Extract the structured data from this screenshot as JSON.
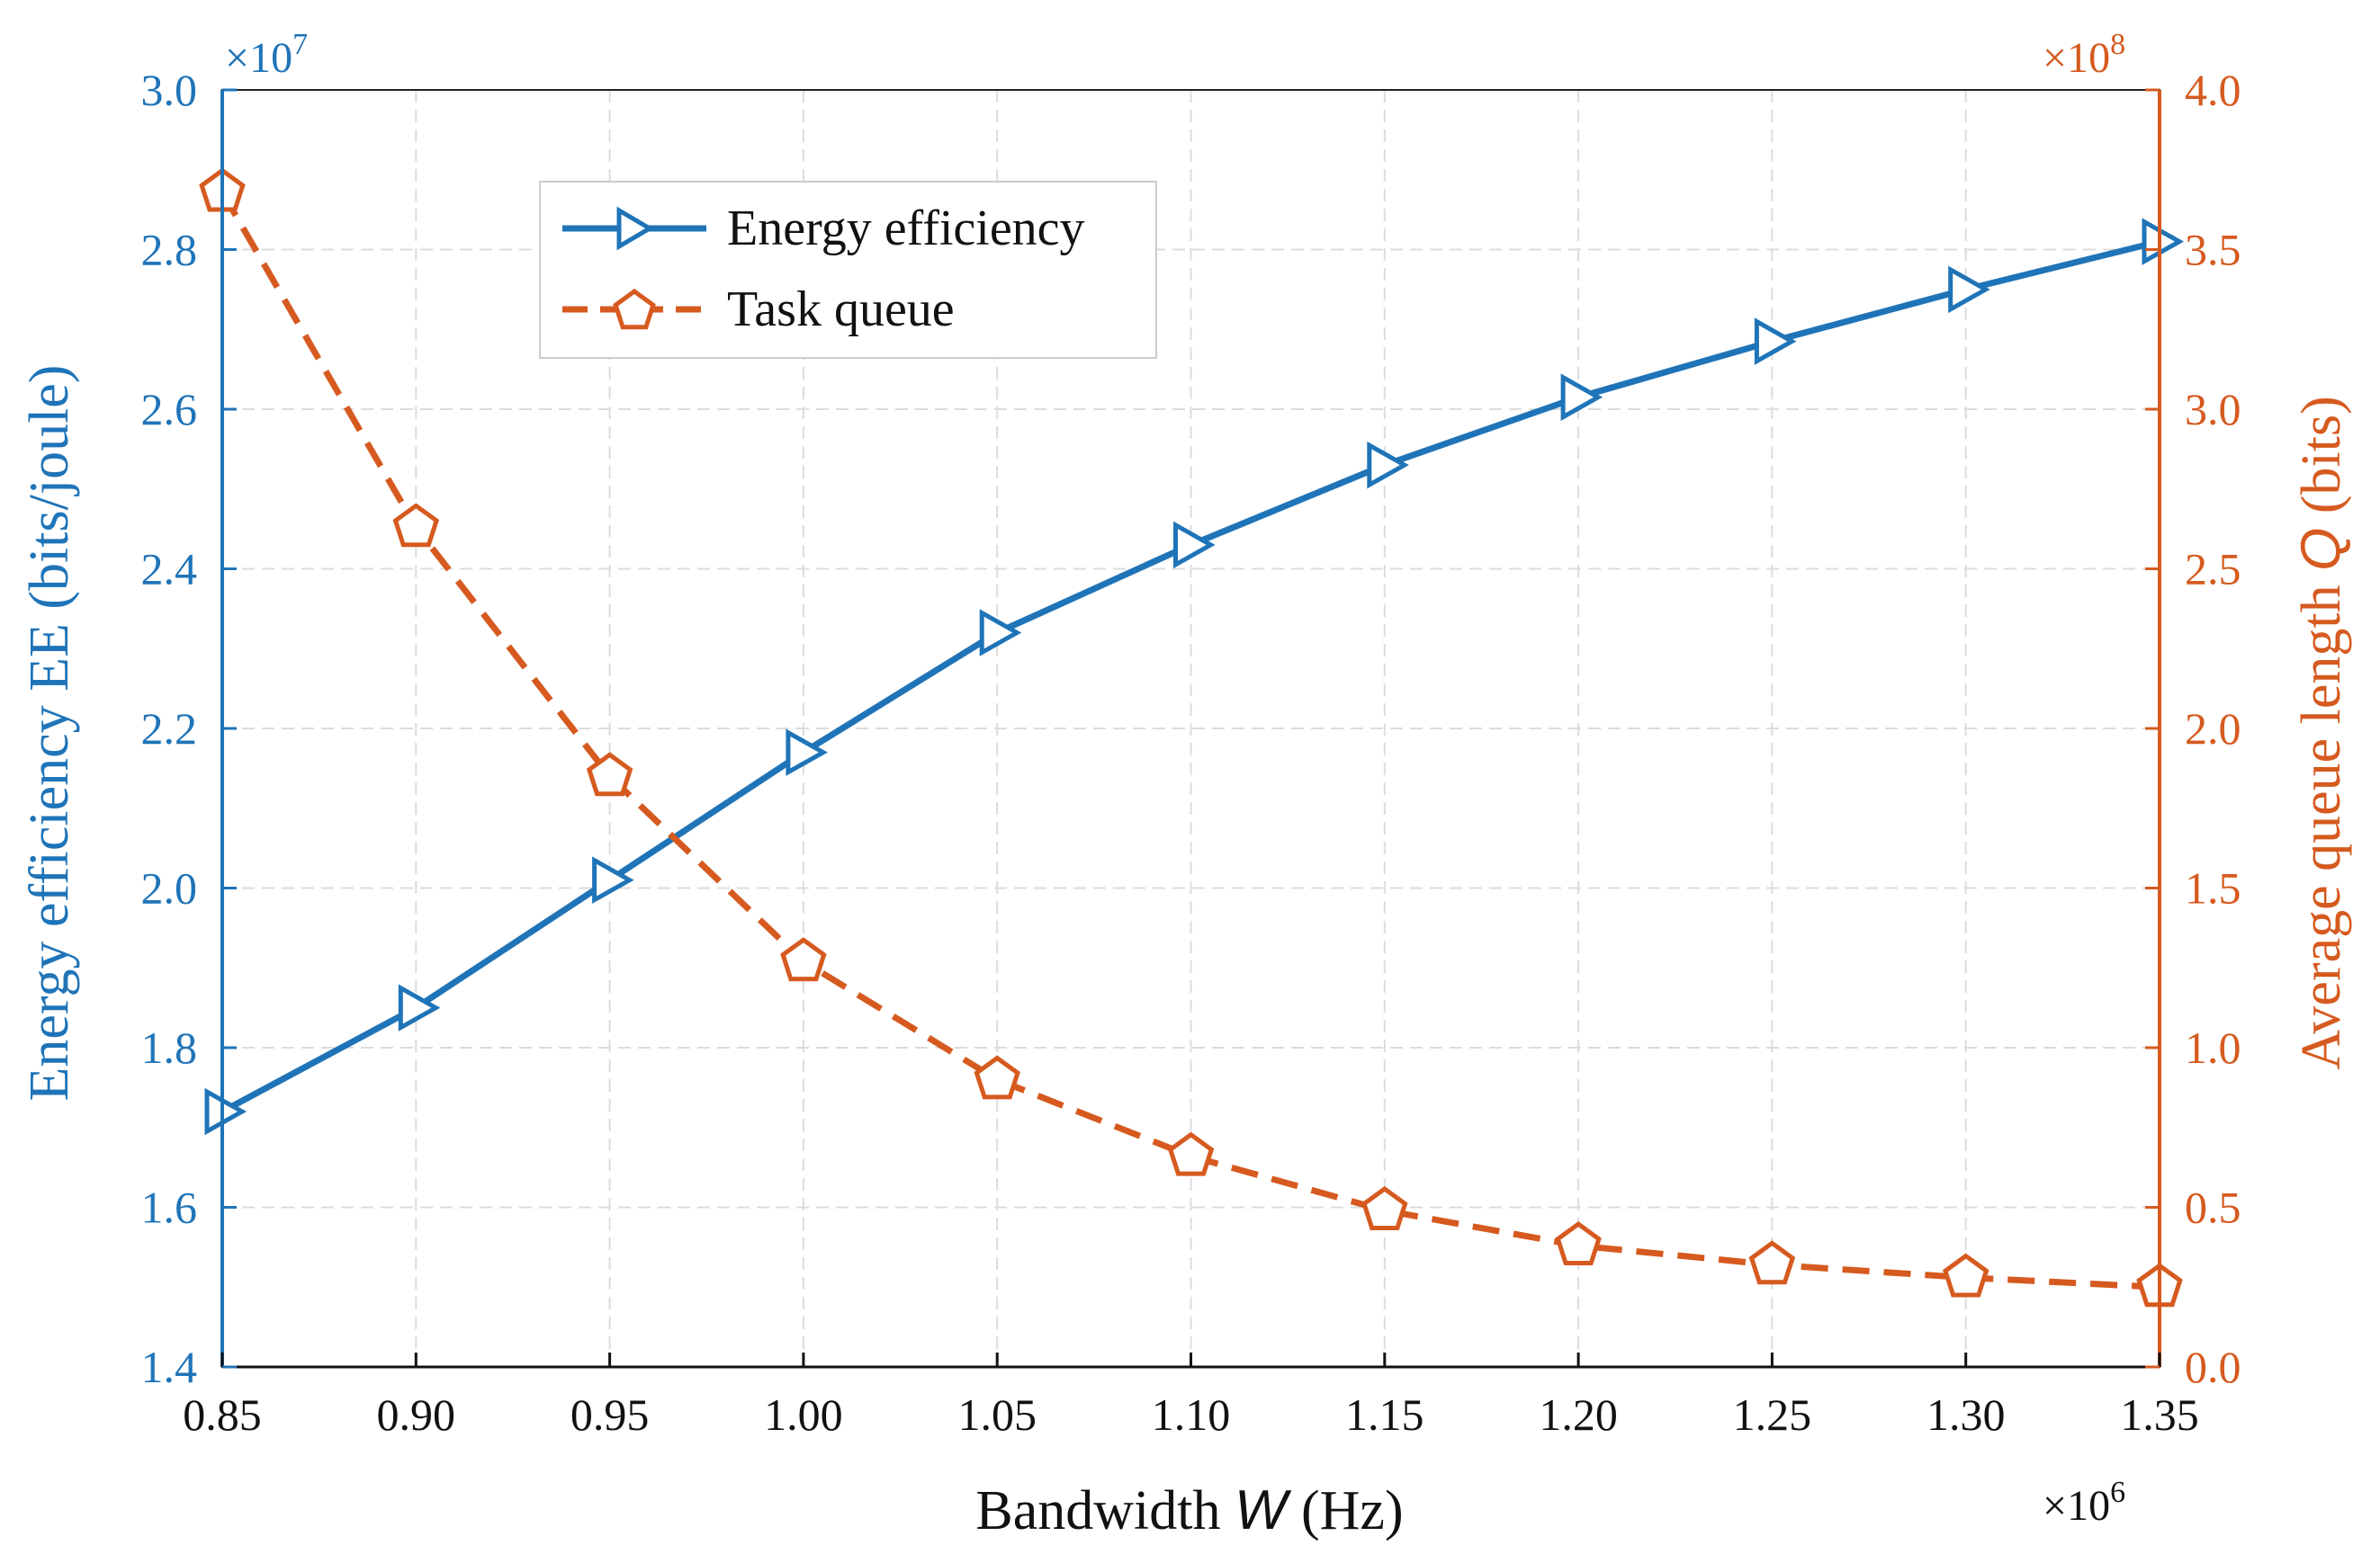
{
  "chart_data": {
    "type": "line",
    "x": [
      0.85,
      0.9,
      0.95,
      1.0,
      1.05,
      1.1,
      1.15,
      1.2,
      1.25,
      1.3,
      1.35
    ],
    "x_tick_labels": [
      "0.85",
      "0.90",
      "0.95",
      "1.00",
      "1.05",
      "1.10",
      "1.15",
      "1.20",
      "1.25",
      "1.30",
      "1.35"
    ],
    "xlim": [
      0.85,
      1.35
    ],
    "x_exponent": "×10",
    "x_exponent_power": "6",
    "xlabel": {
      "pre": "Bandwidth ",
      "var": "W",
      "post": " (Hz)"
    },
    "left_axis": {
      "label": "Energy efficiency EE (bits/joule)",
      "ylim": [
        1.4,
        3.0
      ],
      "ticks": [
        1.4,
        1.6,
        1.8,
        2.0,
        2.2,
        2.4,
        2.6,
        2.8,
        3.0
      ],
      "tick_labels": [
        "1.4",
        "1.6",
        "1.8",
        "2.0",
        "2.2",
        "2.4",
        "2.6",
        "2.8",
        "3.0"
      ],
      "exponent": "×10",
      "exponent_power": "7",
      "color": "#1f74b8"
    },
    "right_axis": {
      "label": {
        "pre": "Average queue length ",
        "var": "Q",
        "post": " (bits)"
      },
      "ylim": [
        0.0,
        4.0
      ],
      "ticks": [
        0.0,
        0.5,
        1.0,
        1.5,
        2.0,
        2.5,
        3.0,
        3.5,
        4.0
      ],
      "tick_labels": [
        "0.0",
        "0.5",
        "1.0",
        "1.5",
        "2.0",
        "2.5",
        "3.0",
        "3.5",
        "4.0"
      ],
      "exponent": "×10",
      "exponent_power": "8",
      "color": "#d65a1f"
    },
    "series": [
      {
        "name": "Energy efficiency",
        "axis": "left",
        "color": "#1f74b8",
        "marker": "triangle-right",
        "style": "solid",
        "values": [
          1.72,
          1.85,
          2.01,
          2.17,
          2.32,
          2.43,
          2.53,
          2.615,
          2.685,
          2.75,
          2.81
        ]
      },
      {
        "name": "Task queue",
        "axis": "right",
        "color": "#d65a1f",
        "marker": "pentagon",
        "style": "dashed",
        "values": [
          3.68,
          2.63,
          1.85,
          1.27,
          0.9,
          0.66,
          0.49,
          0.38,
          0.32,
          0.28,
          0.25
        ]
      }
    ],
    "grid": true,
    "legend_position": "top-left"
  }
}
